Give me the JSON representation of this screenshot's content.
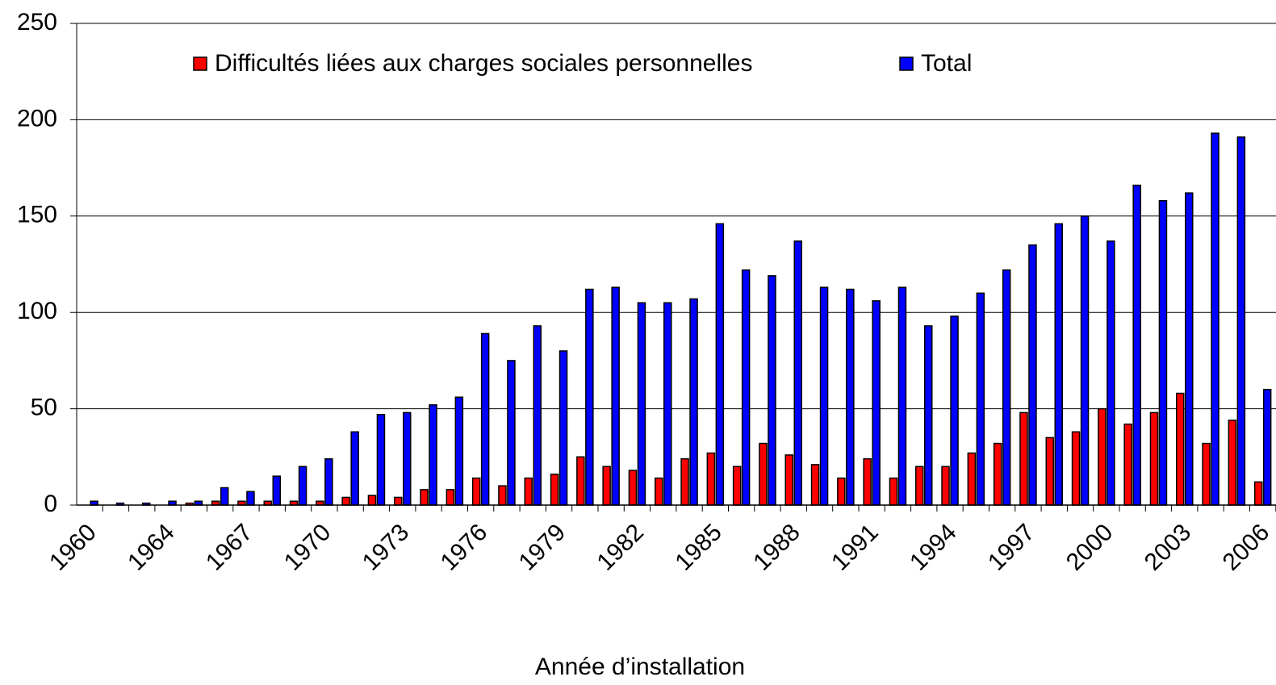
{
  "chart_data": {
    "type": "bar",
    "x_label": "Année d’installation",
    "categories": [
      "1960",
      null,
      null,
      "1964",
      null,
      null,
      "1967",
      null,
      null,
      "1970",
      null,
      null,
      "1973",
      null,
      null,
      "1976",
      null,
      null,
      "1979",
      null,
      null,
      "1982",
      null,
      null,
      "1985",
      null,
      null,
      "1988",
      null,
      null,
      "1991",
      null,
      null,
      "1994",
      null,
      null,
      "1997",
      null,
      null,
      "2000",
      null,
      null,
      "2003",
      null,
      null,
      "2006"
    ],
    "series": [
      {
        "name": "Difficultés liées aux charges sociales personnelles",
        "color": "#ff0000",
        "values": [
          0,
          0,
          0,
          0,
          1,
          2,
          2,
          2,
          2,
          2,
          4,
          5,
          4,
          8,
          8,
          14,
          10,
          14,
          16,
          25,
          20,
          18,
          14,
          24,
          27,
          20,
          32,
          26,
          21,
          14,
          24,
          14,
          20,
          20,
          27,
          32,
          48,
          35,
          38,
          50,
          42,
          48,
          58,
          32,
          44,
          12
        ]
      },
      {
        "name": "Total",
        "color": "#0000ff",
        "values": [
          2,
          1,
          1,
          2,
          2,
          9,
          7,
          15,
          20,
          24,
          38,
          47,
          48,
          52,
          56,
          89,
          75,
          93,
          80,
          112,
          113,
          105,
          105,
          107,
          146,
          122,
          119,
          137,
          113,
          112,
          106,
          113,
          93,
          98,
          110,
          122,
          135,
          146,
          150,
          137,
          166,
          158,
          162,
          193,
          191,
          60
        ]
      }
    ],
    "ylim": [
      0,
      250
    ],
    "yticks": [
      0,
      50,
      100,
      150,
      200,
      250
    ],
    "grid": true,
    "legend": "top"
  }
}
